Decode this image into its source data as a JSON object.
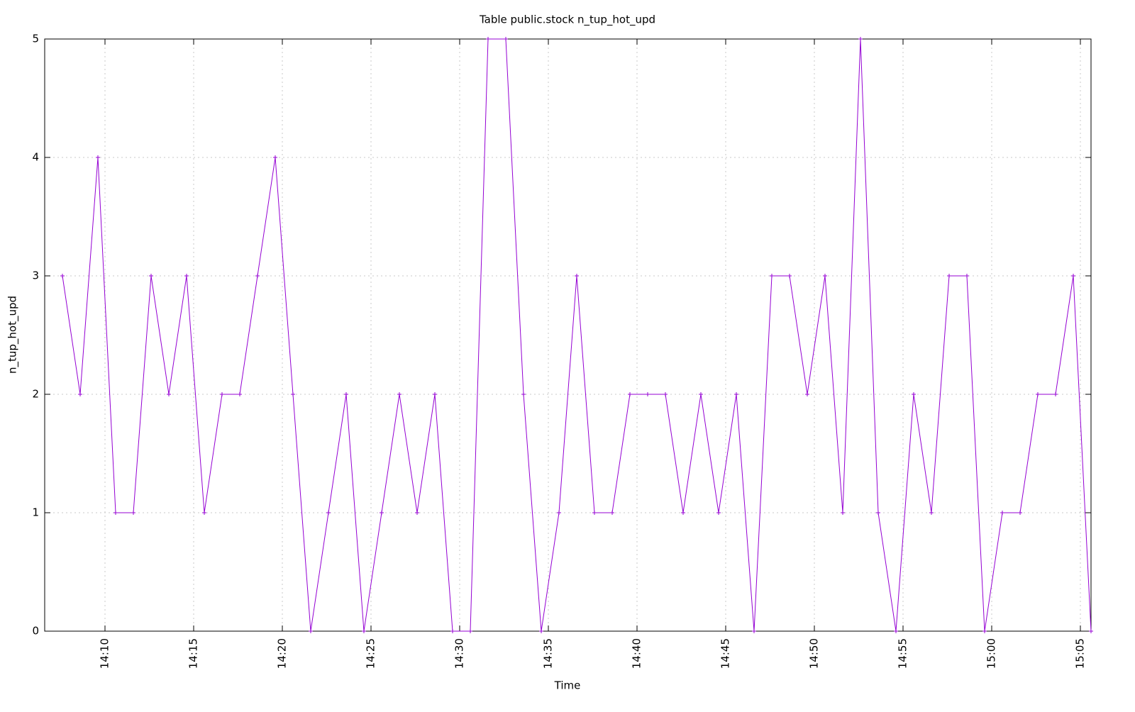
{
  "chart_data": {
    "type": "line",
    "title": "Table public.stock n_tup_hot_upd",
    "x_label": "Time",
    "y_label": "n_tup_hot_upd",
    "x": [
      "14:07:36",
      "14:08:36",
      "14:09:36",
      "14:10:36",
      "14:11:36",
      "14:12:36",
      "14:13:36",
      "14:14:36",
      "14:15:36",
      "14:16:36",
      "14:17:36",
      "14:18:36",
      "14:19:36",
      "14:20:36",
      "14:21:36",
      "14:22:36",
      "14:23:36",
      "14:24:36",
      "14:25:36",
      "14:26:36",
      "14:27:36",
      "14:28:36",
      "14:29:36",
      "14:30:36",
      "14:31:36",
      "14:32:36",
      "14:33:36",
      "14:34:36",
      "14:35:36",
      "14:36:36",
      "14:37:36",
      "14:38:36",
      "14:39:36",
      "14:40:36",
      "14:41:36",
      "14:42:36",
      "14:43:36",
      "14:44:36",
      "14:45:36",
      "14:46:36",
      "14:47:36",
      "14:48:36",
      "14:49:36",
      "14:50:36",
      "14:51:36",
      "14:52:36",
      "14:53:36",
      "14:54:36",
      "14:55:36",
      "14:56:36",
      "14:57:36",
      "14:58:36",
      "14:59:36",
      "15:00:36",
      "15:01:36",
      "15:02:36",
      "15:03:36",
      "15:04:36",
      "15:05:36"
    ],
    "values": [
      3,
      2,
      4,
      1,
      1,
      3,
      2,
      3,
      1,
      2,
      2,
      3,
      4,
      2,
      0,
      1,
      2,
      0,
      1,
      2,
      1,
      2,
      0,
      0,
      5,
      5,
      2,
      0,
      1,
      3,
      1,
      1,
      2,
      2,
      2,
      1,
      2,
      1,
      2,
      0,
      3,
      3,
      2,
      3,
      1,
      5,
      1,
      0,
      2,
      1,
      3,
      3,
      0,
      1,
      1,
      2,
      2,
      3,
      0
    ],
    "color": "#9400d3",
    "xlim": [
      "14:06:36",
      "15:05:36"
    ],
    "xticks": [
      "14:10",
      "14:15",
      "14:20",
      "14:25",
      "14:30",
      "14:35",
      "14:40",
      "14:45",
      "14:50",
      "14:55",
      "15:00",
      "15:05"
    ],
    "ylim": [
      0,
      5
    ],
    "yticks": [
      0,
      1,
      2,
      3,
      4,
      5
    ],
    "grid": true
  }
}
